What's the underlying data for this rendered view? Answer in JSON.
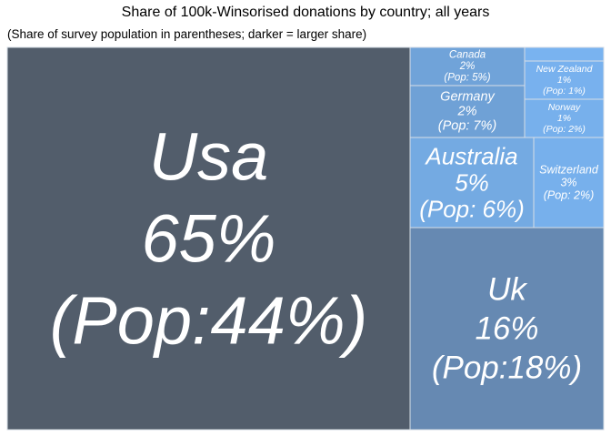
{
  "title": "Share of 100k-Winsorised donations by country; all years",
  "subtitle": "(Share of survey population in parentheses; darker = larger share)",
  "chart_data": {
    "type": "treemap",
    "title": "Share of 100k-Winsorised donations by country; all years",
    "subtitle": "(Share of survey population in parentheses; darker = larger share)",
    "colors": {
      "largest": "#525D6B",
      "large": "#6689B2",
      "medium": "#6FA1D6",
      "small": "#76AEE8",
      "border": "#D7DEE6"
    },
    "items": [
      {
        "name": "Usa",
        "share": "65%",
        "pop": "(Pop:44%)",
        "share_value": 65,
        "pop_value": 44,
        "color": "#525D6B"
      },
      {
        "name": "Uk",
        "share": "16%",
        "pop": "(Pop:18%)",
        "share_value": 16,
        "pop_value": 18,
        "color": "#6689B2"
      },
      {
        "name": "Australia",
        "share": "5%",
        "pop": "(Pop: 6%)",
        "share_value": 5,
        "pop_value": 6,
        "color": "#74AAE2"
      },
      {
        "name": "Switzerland",
        "share": "3%",
        "pop": "(Pop: 2%)",
        "share_value": 3,
        "pop_value": 2,
        "color": "#77B0EC"
      },
      {
        "name": "Germany",
        "share": "2%",
        "pop": "(Pop: 7%)",
        "share_value": 2,
        "pop_value": 7,
        "color": "#6FA1D6"
      },
      {
        "name": "Canada",
        "share": "2%",
        "pop": "(Pop: 5%)",
        "share_value": 2,
        "pop_value": 5,
        "color": "#70A3D9"
      },
      {
        "name": "New Zealand",
        "share": "1%",
        "pop": "(Pop: 1%)",
        "share_value": 1,
        "pop_value": 1,
        "color": "#78B1EE"
      },
      {
        "name": "Norway",
        "share": "1%",
        "pop": "(Pop: 2%)",
        "share_value": 1,
        "pop_value": 2,
        "color": "#77B0EC"
      }
    ]
  }
}
